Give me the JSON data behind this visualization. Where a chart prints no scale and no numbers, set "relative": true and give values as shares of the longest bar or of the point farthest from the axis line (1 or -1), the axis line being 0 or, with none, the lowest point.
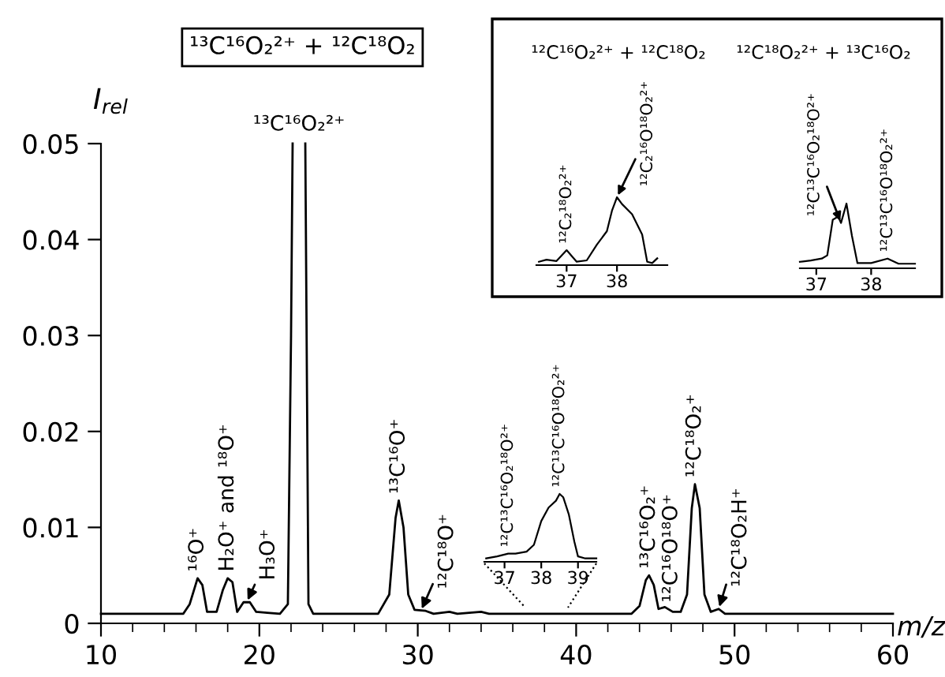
{
  "chart_data": [
    {
      "type": "line",
      "title": "¹³C¹⁶O₂²⁺ + ¹²C¹⁸O₂",
      "xlabel": "m/z",
      "ylabel": "I$_{rel}$",
      "color": "#000000",
      "x": [
        10,
        15.2,
        15.6,
        16.1,
        16.4,
        16.7,
        17.3,
        17.7,
        18.0,
        18.3,
        18.6,
        19.0,
        19.4,
        19.8,
        20.5,
        21.3,
        21.8,
        22.0,
        22.1,
        22.5,
        22.9,
        23.1,
        23.4,
        27.5,
        28.2,
        28.6,
        28.8,
        29.1,
        29.4,
        29.8,
        30.5,
        31.0,
        32.0,
        32.5,
        34.0,
        34.5,
        43.5,
        44.0,
        44.4,
        44.6,
        44.9,
        45.2,
        45.6,
        46.1,
        46.6,
        47.0,
        47.3,
        47.5,
        47.8,
        48.1,
        48.5,
        49.0,
        49.4,
        60
      ],
      "values": [
        0.001,
        0.001,
        0.002,
        0.0047,
        0.004,
        0.0012,
        0.0012,
        0.0035,
        0.0047,
        0.0043,
        0.0012,
        0.0022,
        0.0022,
        0.0012,
        0.0011,
        0.001,
        0.002,
        0.03,
        0.05,
        null,
        0.05,
        0.002,
        0.001,
        0.001,
        0.003,
        0.011,
        0.0128,
        0.01,
        0.003,
        0.0014,
        0.0013,
        0.001,
        0.0012,
        0.001,
        0.0012,
        0.001,
        0.001,
        0.0018,
        0.0045,
        0.005,
        0.004,
        0.0015,
        0.0017,
        0.0012,
        0.0012,
        0.003,
        0.012,
        0.0145,
        0.012,
        0.003,
        0.0012,
        0.0015,
        0.001,
        0.001
      ],
      "xlim": [
        10,
        60
      ],
      "xticks": [
        10,
        20,
        30,
        40,
        50,
        60
      ],
      "ylim": [
        0,
        0.05
      ],
      "yticks": [
        0,
        0.01,
        0.02,
        0.03,
        0.04,
        0.05
      ],
      "grid": false,
      "legend": false,
      "annotations": [
        {
          "text": "¹³C¹⁶O₂²⁺",
          "x": 22.5,
          "y": 0.05
        },
        {
          "text": "¹⁶O⁺",
          "x": 16.1,
          "y": 0.0047
        },
        {
          "text": "H₂O⁺ and ¹⁸O⁺",
          "x": 18.0,
          "y": 0.0047
        },
        {
          "text": "H₃O⁺",
          "x": 19.2,
          "y": 0.0022
        },
        {
          "text": "¹³C¹⁶O⁺",
          "x": 28.8,
          "y": 0.0128
        },
        {
          "text": "¹²C¹⁸O⁺",
          "x": 30.2,
          "y": 0.0013
        },
        {
          "text": "¹³C¹⁶O₂⁺",
          "x": 44.6,
          "y": 0.005
        },
        {
          "text": "¹²C¹⁶O¹⁸O⁺",
          "x": 45.6,
          "y": 0.0015
        },
        {
          "text": "¹²C¹⁸O₂⁺",
          "x": 47.5,
          "y": 0.0145
        },
        {
          "text": "¹²C¹⁸O₂H⁺",
          "x": 49.0,
          "y": 0.0015
        }
      ]
    },
    {
      "type": "line",
      "relative": true,
      "color": "#000000",
      "x": [
        36.5,
        36.8,
        37.1,
        37.3,
        37.6,
        37.8,
        38.0,
        38.2,
        38.4,
        38.5,
        38.6,
        38.75,
        38.9,
        39.0,
        39.2,
        39.5
      ],
      "values": [
        0.05,
        0.08,
        0.12,
        0.12,
        0.15,
        0.25,
        0.6,
        0.8,
        0.9,
        1.0,
        0.95,
        0.7,
        0.3,
        0.08,
        0.05,
        0.05
      ],
      "xlim": [
        36.45,
        39.5
      ],
      "xticks": [
        37,
        38,
        39
      ],
      "tick_labels": "x",
      "annotations": [
        {
          "text": "¹²C¹³C¹⁶O₂¹⁸O²⁺",
          "x": 37.1,
          "y": 0.12
        },
        {
          "text": "¹²C¹³C¹⁶O¹⁸O₂²⁺",
          "x": 38.5,
          "y": 1.0
        }
      ]
    },
    {
      "type": "line",
      "relative": true,
      "title": "¹²C¹⁶O₂²⁺ + ¹²C¹⁸O₂",
      "color": "#000000",
      "x": [
        36.45,
        36.6,
        36.8,
        37.0,
        37.2,
        37.4,
        37.6,
        37.8,
        37.9,
        38.0,
        38.1,
        38.3,
        38.5,
        38.6,
        38.7,
        38.8
      ],
      "values": [
        0.05,
        0.08,
        0.06,
        0.22,
        0.05,
        0.07,
        0.3,
        0.5,
        0.8,
        1.0,
        0.9,
        0.75,
        0.45,
        0.05,
        0.03,
        0.1
      ],
      "xlim": [
        36.4,
        39.0
      ],
      "xticks": [
        37,
        38
      ],
      "tick_labels": "x",
      "annotations": [
        {
          "text": "¹²C₂¹⁸O₂²⁺",
          "x": 37.0,
          "y": 0.22
        },
        {
          "text": "¹²C₂¹⁶O¹⁸O₂²⁺",
          "x": 38.0,
          "y": 1.0
        }
      ]
    },
    {
      "type": "line",
      "relative": true,
      "title": "¹²C¹⁸O₂²⁺ + ¹³C¹⁶O₂",
      "color": "#000000",
      "x": [
        36.7,
        36.9,
        37.1,
        37.2,
        37.3,
        37.4,
        37.45,
        37.55,
        37.65,
        37.75,
        38.0,
        38.3,
        38.5,
        38.8
      ],
      "values": [
        0.1,
        0.12,
        0.15,
        0.2,
        0.75,
        0.8,
        0.7,
        1.0,
        0.5,
        0.08,
        0.08,
        0.15,
        0.07,
        0.07
      ],
      "xlim": [
        36.7,
        38.8
      ],
      "xticks": [
        37,
        38
      ],
      "tick_labels": "x",
      "annotations": [
        {
          "text": "¹²C¹³C¹⁶O₂¹⁸O²⁺",
          "x": 37.45,
          "y": 0.7
        },
        {
          "text": "¹²C¹³C¹⁶O¹⁸O₂²⁺",
          "x": 38.3,
          "y": 0.15
        }
      ]
    }
  ]
}
